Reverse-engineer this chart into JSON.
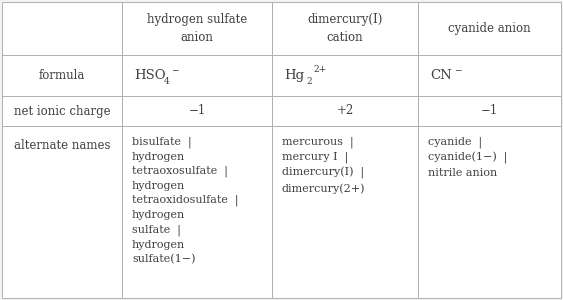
{
  "col_headers": [
    "hydrogen sulfate\nanion",
    "dimercury(I)\ncation",
    "cyanide anion"
  ],
  "row_headers": [
    "formula",
    "net ionic charge",
    "alternate names"
  ],
  "charge_row": [
    "−1",
    "+2",
    "−1"
  ],
  "alt_names_col0": "bisulfate  |\nhydrogen\ntetraoxosulfate  |\nhydrogen\ntetraoxidosulfate  |\nhydrogen\nsulfate  |\nhydrogen\nsulfate(1−)",
  "alt_names_col1": "mercurous  |\nmercury I  |\ndimercury(I)  |\ndimercury(2+)",
  "alt_names_col2": "cyanide  |\ncyanide(1−)  |\nnitrile anion",
  "bg_color": "#f2f2f2",
  "cell_bg": "#ffffff",
  "text_color": "#404040",
  "border_color": "#b0b0b0",
  "font_size": 8.5,
  "sub_font_size": 6.5,
  "figwidth": 5.63,
  "figheight": 3.0,
  "dpi": 100
}
